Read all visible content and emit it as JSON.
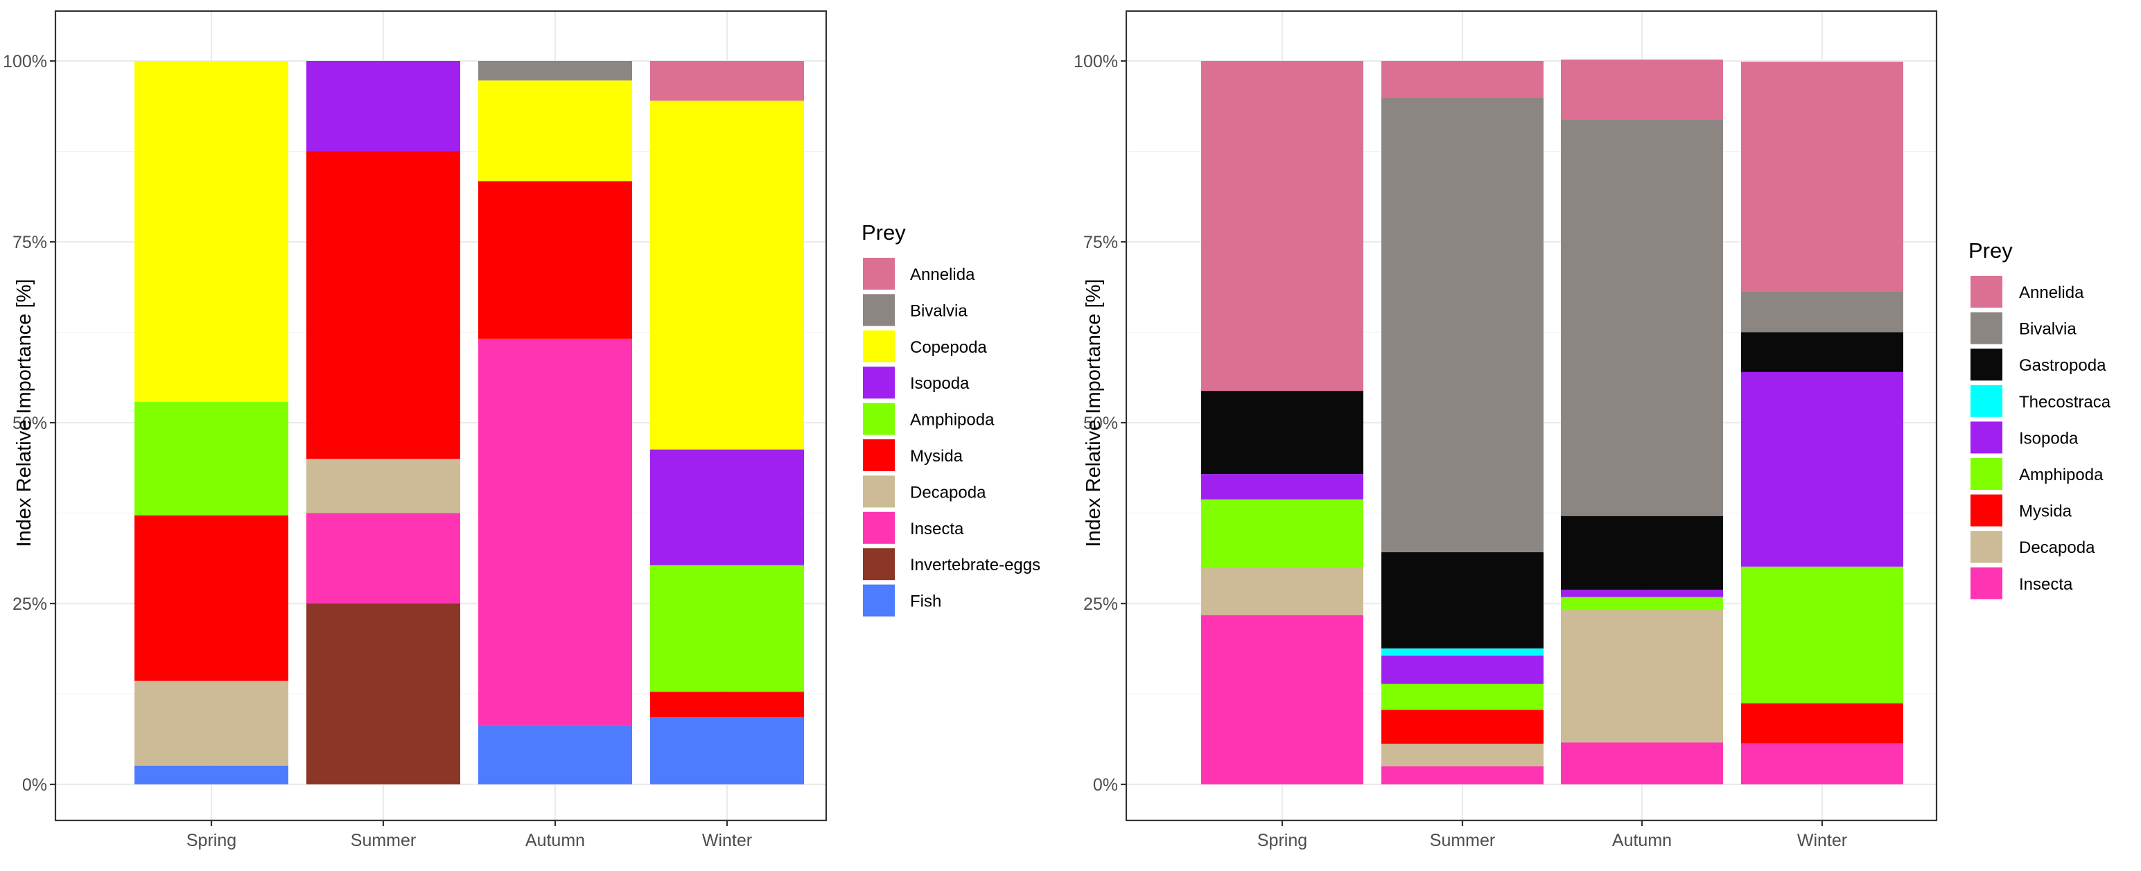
{
  "chart_data": [
    {
      "type": "bar",
      "stacked": true,
      "categories": [
        "Spring",
        "Summer",
        "Autumn",
        "Winter"
      ],
      "ylabel": "Index Relative Importance [%]",
      "xlabel": "",
      "ylim": [
        0,
        100
      ],
      "yticks": [
        "0%",
        "25%",
        "50%",
        "75%",
        "100%"
      ],
      "grid": true,
      "legend_title": "Prey",
      "legend_position": "right",
      "series": [
        {
          "name": "Annelida",
          "color": "#DB7093",
          "values": [
            0,
            0,
            0,
            5.5
          ]
        },
        {
          "name": "Bivalvia",
          "color": "#8C8682",
          "values": [
            0,
            0,
            2.7,
            0
          ]
        },
        {
          "name": "Copepoda",
          "color": "#FFFF00",
          "values": [
            47.1,
            0,
            13.9,
            48.2
          ]
        },
        {
          "name": "Isopoda",
          "color": "#A020F0",
          "values": [
            0,
            12.5,
            0,
            16.0
          ]
        },
        {
          "name": "Amphipoda",
          "color": "#7FFF00",
          "values": [
            15.7,
            0,
            0,
            17.5
          ]
        },
        {
          "name": "Mysida",
          "color": "#FF0000",
          "values": [
            22.9,
            42.5,
            21.8,
            3.5
          ]
        },
        {
          "name": "Decapoda",
          "color": "#CCBB96",
          "values": [
            11.7,
            7.5,
            0,
            0
          ]
        },
        {
          "name": "Insecta",
          "color": "#FF34B3",
          "values": [
            0,
            12.5,
            53.5,
            0
          ]
        },
        {
          "name": "Invertebrate-eggs",
          "color": "#8B3626",
          "values": [
            0,
            25.0,
            0,
            0
          ]
        },
        {
          "name": "Fish",
          "color": "#4D7CFE",
          "values": [
            2.6,
            0,
            8.1,
            9.3
          ]
        }
      ]
    },
    {
      "type": "bar",
      "stacked": true,
      "categories": [
        "Spring",
        "Summer",
        "Autumn",
        "Winter"
      ],
      "ylabel": "Index Relative Importance [%]",
      "xlabel": "",
      "ylim": [
        0,
        100
      ],
      "yticks": [
        "0%",
        "25%",
        "50%",
        "75%",
        "100%"
      ],
      "grid": true,
      "legend_title": "Prey",
      "legend_position": "right",
      "series": [
        {
          "name": "Annelida",
          "color": "#DB7093",
          "values": [
            45.6,
            5.0,
            8.3,
            31.8
          ]
        },
        {
          "name": "Bivalvia",
          "color": "#8C8682",
          "values": [
            0,
            62.9,
            54.8,
            5.6
          ]
        },
        {
          "name": "Gastropoda",
          "color": "#0A0A0A",
          "values": [
            11.5,
            13.3,
            10.2,
            5.5
          ]
        },
        {
          "name": "Thecostraca",
          "color": "#00FFFF",
          "values": [
            0,
            1.0,
            0,
            0
          ]
        },
        {
          "name": "Isopoda",
          "color": "#A020F0",
          "values": [
            3.5,
            3.9,
            1.0,
            26.9
          ]
        },
        {
          "name": "Amphipoda",
          "color": "#7FFF00",
          "values": [
            9.5,
            3.6,
            1.8,
            18.9
          ]
        },
        {
          "name": "Mysida",
          "color": "#FF0000",
          "values": [
            0,
            4.7,
            0,
            5.5
          ]
        },
        {
          "name": "Decapoda",
          "color": "#CCBB96",
          "values": [
            6.5,
            3.1,
            18.3,
            0
          ]
        },
        {
          "name": "Insecta",
          "color": "#FF34B3",
          "values": [
            23.4,
            2.5,
            5.8,
            5.7
          ]
        }
      ]
    }
  ]
}
